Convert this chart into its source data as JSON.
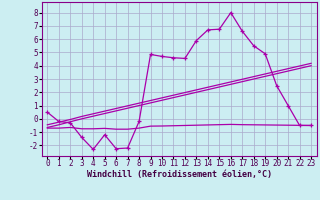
{
  "background_color": "#cceef2",
  "grid_color": "#aaaacc",
  "line_color": "#aa00aa",
  "x": [
    0,
    1,
    2,
    3,
    4,
    5,
    6,
    7,
    8,
    9,
    10,
    11,
    12,
    13,
    14,
    15,
    16,
    17,
    18,
    19,
    20,
    21,
    22,
    23
  ],
  "y_main": [
    0.5,
    -0.2,
    -0.3,
    -1.4,
    -2.3,
    -1.2,
    -2.25,
    -2.2,
    -0.2,
    4.85,
    4.7,
    4.6,
    4.55,
    5.9,
    6.7,
    6.75,
    8.0,
    6.6,
    5.5,
    4.9,
    2.5,
    1.0,
    -0.5,
    -0.5
  ],
  "y_lower": [
    -0.7,
    -0.7,
    -0.65,
    -0.75,
    -0.75,
    -0.72,
    -0.78,
    -0.78,
    -0.7,
    -0.55,
    -0.54,
    -0.52,
    -0.5,
    -0.48,
    -0.46,
    -0.44,
    -0.42,
    -0.44,
    -0.45,
    -0.46,
    -0.47,
    -0.48,
    -0.49,
    -0.5
  ],
  "y_regr1": [
    -0.45,
    -0.25,
    -0.05,
    0.18,
    0.38,
    0.58,
    0.78,
    0.98,
    1.18,
    1.38,
    1.58,
    1.78,
    1.98,
    2.18,
    2.38,
    2.58,
    2.78,
    2.98,
    3.18,
    3.38,
    3.58,
    3.78,
    3.98,
    4.18
  ],
  "y_regr2": [
    -0.65,
    -0.45,
    -0.22,
    -0.0,
    0.2,
    0.4,
    0.6,
    0.8,
    1.0,
    1.2,
    1.4,
    1.6,
    1.8,
    2.0,
    2.2,
    2.4,
    2.6,
    2.8,
    3.0,
    3.2,
    3.4,
    3.6,
    3.8,
    4.0
  ],
  "ylim": [
    -2.8,
    8.8
  ],
  "xlim": [
    -0.5,
    23.5
  ],
  "yticks": [
    -2,
    -1,
    0,
    1,
    2,
    3,
    4,
    5,
    6,
    7,
    8
  ],
  "xticks": [
    0,
    1,
    2,
    3,
    4,
    5,
    6,
    7,
    8,
    9,
    10,
    11,
    12,
    13,
    14,
    15,
    16,
    17,
    18,
    19,
    20,
    21,
    22,
    23
  ],
  "xlabel": "Windchill (Refroidissement éolien,°C)",
  "xlabel_fontsize": 6.0,
  "tick_fontsize": 5.5,
  "lw": 0.9
}
